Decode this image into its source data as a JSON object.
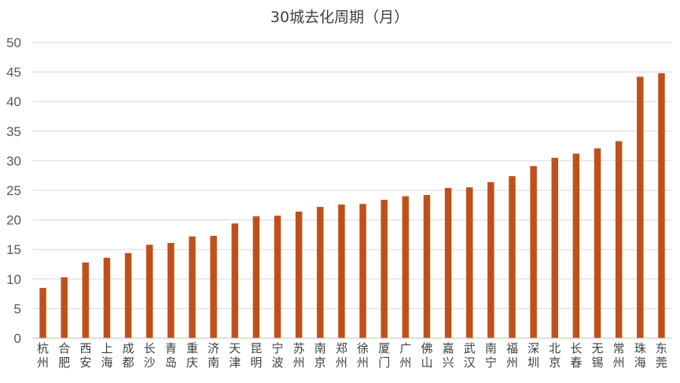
{
  "chart_data": {
    "type": "bar",
    "title": "30城去化周期（月）",
    "xlabel": "",
    "ylabel": "",
    "ylim": [
      0,
      50
    ],
    "yticks": [
      0,
      5,
      10,
      15,
      20,
      25,
      30,
      35,
      40,
      45,
      50
    ],
    "grid": true,
    "legend": "none",
    "bar_color": "#C0501B",
    "categories": [
      "杭州",
      "合肥",
      "西安",
      "上海",
      "成都",
      "长沙",
      "青岛",
      "重庆",
      "济南",
      "天津",
      "昆明",
      "宁波",
      "苏州",
      "南京",
      "郑州",
      "徐州",
      "厦门",
      "广州",
      "佛山",
      "嘉兴",
      "武汉",
      "南宁",
      "福州",
      "深圳",
      "北京",
      "长春",
      "无锡",
      "常州",
      "珠海",
      "东莞"
    ],
    "values": [
      8.5,
      10.3,
      12.8,
      13.6,
      14.4,
      15.8,
      16.1,
      17.2,
      17.3,
      19.4,
      20.6,
      20.7,
      21.4,
      22.2,
      22.6,
      22.7,
      23.4,
      24.0,
      24.2,
      25.4,
      25.5,
      26.4,
      27.4,
      29.1,
      30.5,
      31.2,
      32.1,
      33.3,
      44.2,
      44.8
    ]
  }
}
